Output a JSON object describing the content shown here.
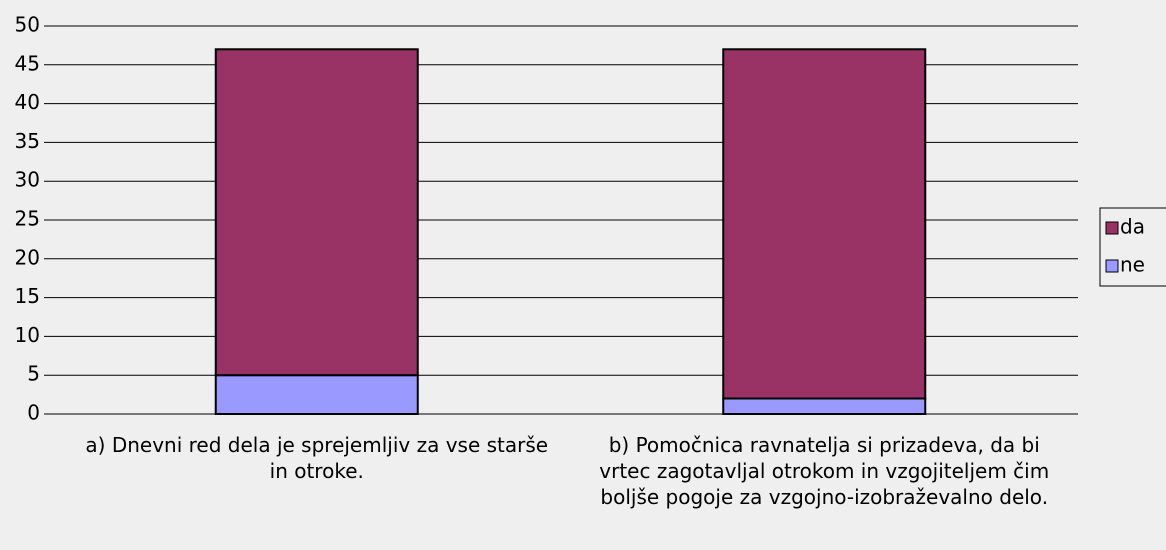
{
  "chart_data": {
    "type": "stacked_bar",
    "categories": [
      "a) Dnevni red dela je sprejemljiv za vse starše in otroke.",
      "b) Pomočnica ravnatelja si prizadeva, da bi vrtec zagotavljal otrokom in vzgojiteljem čim boljše pogoje za vzgojno-izobraževalno delo."
    ],
    "series": [
      {
        "name": "ne",
        "color": "#9999ff",
        "values": [
          5,
          2
        ]
      },
      {
        "name": "da",
        "color": "#993366",
        "values": [
          42,
          45
        ]
      }
    ],
    "ylim": [
      0,
      50
    ],
    "yticks": [
      0,
      5,
      10,
      15,
      20,
      25,
      30,
      35,
      40,
      45,
      50
    ],
    "grid": true,
    "legend": "right"
  }
}
